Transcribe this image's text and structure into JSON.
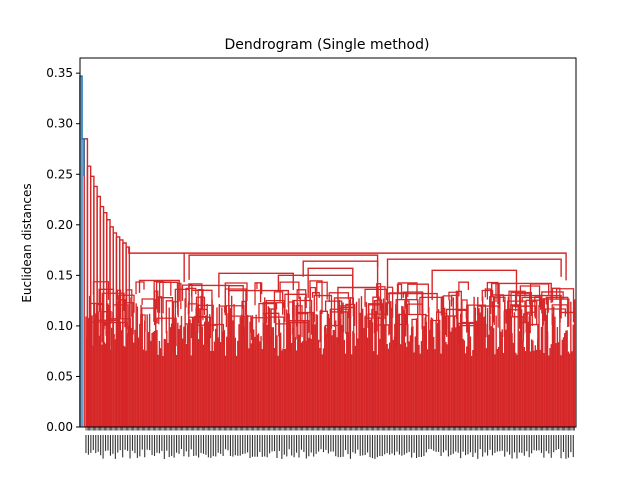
{
  "chart_data": {
    "type": "dendrogram",
    "title": "Dendrogram (Single method)",
    "xlabel": "",
    "ylabel": "Euclidean distances",
    "ylim": [
      0,
      0.365
    ],
    "yticks": [
      0.0,
      0.05,
      0.1,
      0.15,
      0.2,
      0.25,
      0.3,
      0.35
    ],
    "ytick_labels": [
      "0.00",
      "0.05",
      "0.10",
      "0.15",
      "0.20",
      "0.25",
      "0.30",
      "0.35"
    ],
    "leaf_count": 400,
    "root_height": 0.347,
    "main_cluster_height": 0.172,
    "branch_colors": {
      "above_threshold": "#1f77b4",
      "cluster": "#d62728"
    },
    "left_chain_heights": [
      0.347,
      0.285,
      0.258,
      0.248,
      0.238,
      0.228,
      0.218,
      0.212,
      0.205,
      0.198,
      0.192,
      0.188,
      0.185,
      0.182,
      0.178
    ],
    "major_merges": [
      {
        "height": 0.172,
        "span": [
          0.21,
          0.98
        ]
      },
      {
        "height": 0.17,
        "span": [
          0.22,
          0.6
        ]
      },
      {
        "height": 0.166,
        "span": [
          0.62,
          0.97
        ]
      },
      {
        "height": 0.164,
        "span": [
          0.45,
          0.6
        ]
      },
      {
        "height": 0.157,
        "span": [
          0.46,
          0.55
        ]
      },
      {
        "height": 0.155,
        "span": [
          0.71,
          0.88
        ]
      },
      {
        "height": 0.152,
        "span": [
          0.28,
          0.43
        ]
      },
      {
        "height": 0.15,
        "span": [
          0.4,
          0.55
        ]
      },
      {
        "height": 0.145,
        "span": [
          0.12,
          0.2
        ]
      },
      {
        "height": 0.142,
        "span": [
          0.83,
          0.95
        ]
      },
      {
        "height": 0.14,
        "span": [
          0.22,
          0.3
        ]
      },
      {
        "height": 0.138,
        "span": [
          0.52,
          0.6
        ]
      },
      {
        "height": 0.135,
        "span": [
          0.3,
          0.42
        ]
      },
      {
        "height": 0.132,
        "span": [
          0.62,
          0.72
        ]
      },
      {
        "height": 0.13,
        "span": [
          0.88,
          0.97
        ]
      }
    ]
  }
}
